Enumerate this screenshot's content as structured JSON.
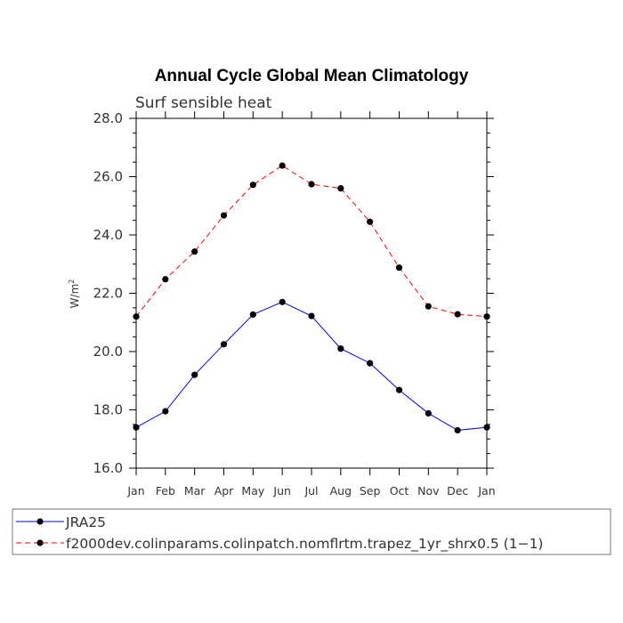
{
  "chart_data": {
    "type": "line",
    "title": "Annual Cycle Global Mean Climatology",
    "subtitle": "Surf sensible heat",
    "ylabel": "W/m",
    "ylabel_exponent": "2",
    "xlabel": "",
    "ylim": [
      16.0,
      28.0
    ],
    "yticks": [
      "16.0",
      "18.0",
      "20.0",
      "22.0",
      "24.0",
      "26.0",
      "28.0"
    ],
    "ytick_values": [
      16,
      18,
      20,
      22,
      24,
      26,
      28
    ],
    "categories": [
      "Jan",
      "Feb",
      "Mar",
      "Apr",
      "May",
      "Jun",
      "Jul",
      "Aug",
      "Sep",
      "Oct",
      "Nov",
      "Dec",
      "Jan"
    ],
    "series": [
      {
        "name": "JRA25",
        "color": "#0000ff",
        "dash": "solid",
        "values": [
          17.4,
          17.95,
          19.2,
          20.25,
          21.27,
          21.7,
          21.22,
          20.1,
          19.6,
          18.68,
          17.88,
          17.3,
          17.4
        ]
      },
      {
        "name": "f2000dev.colinparams.colinpatch.nomflrtm.trapez_1yr_shrx0.5 (1−1)",
        "color": "#ff0000",
        "dash": "dashed",
        "values": [
          21.2,
          22.48,
          23.43,
          24.67,
          25.72,
          26.38,
          25.74,
          25.6,
          24.45,
          22.88,
          21.55,
          21.28,
          21.2
        ]
      }
    ],
    "legend_position": "bottom",
    "grid": false
  }
}
